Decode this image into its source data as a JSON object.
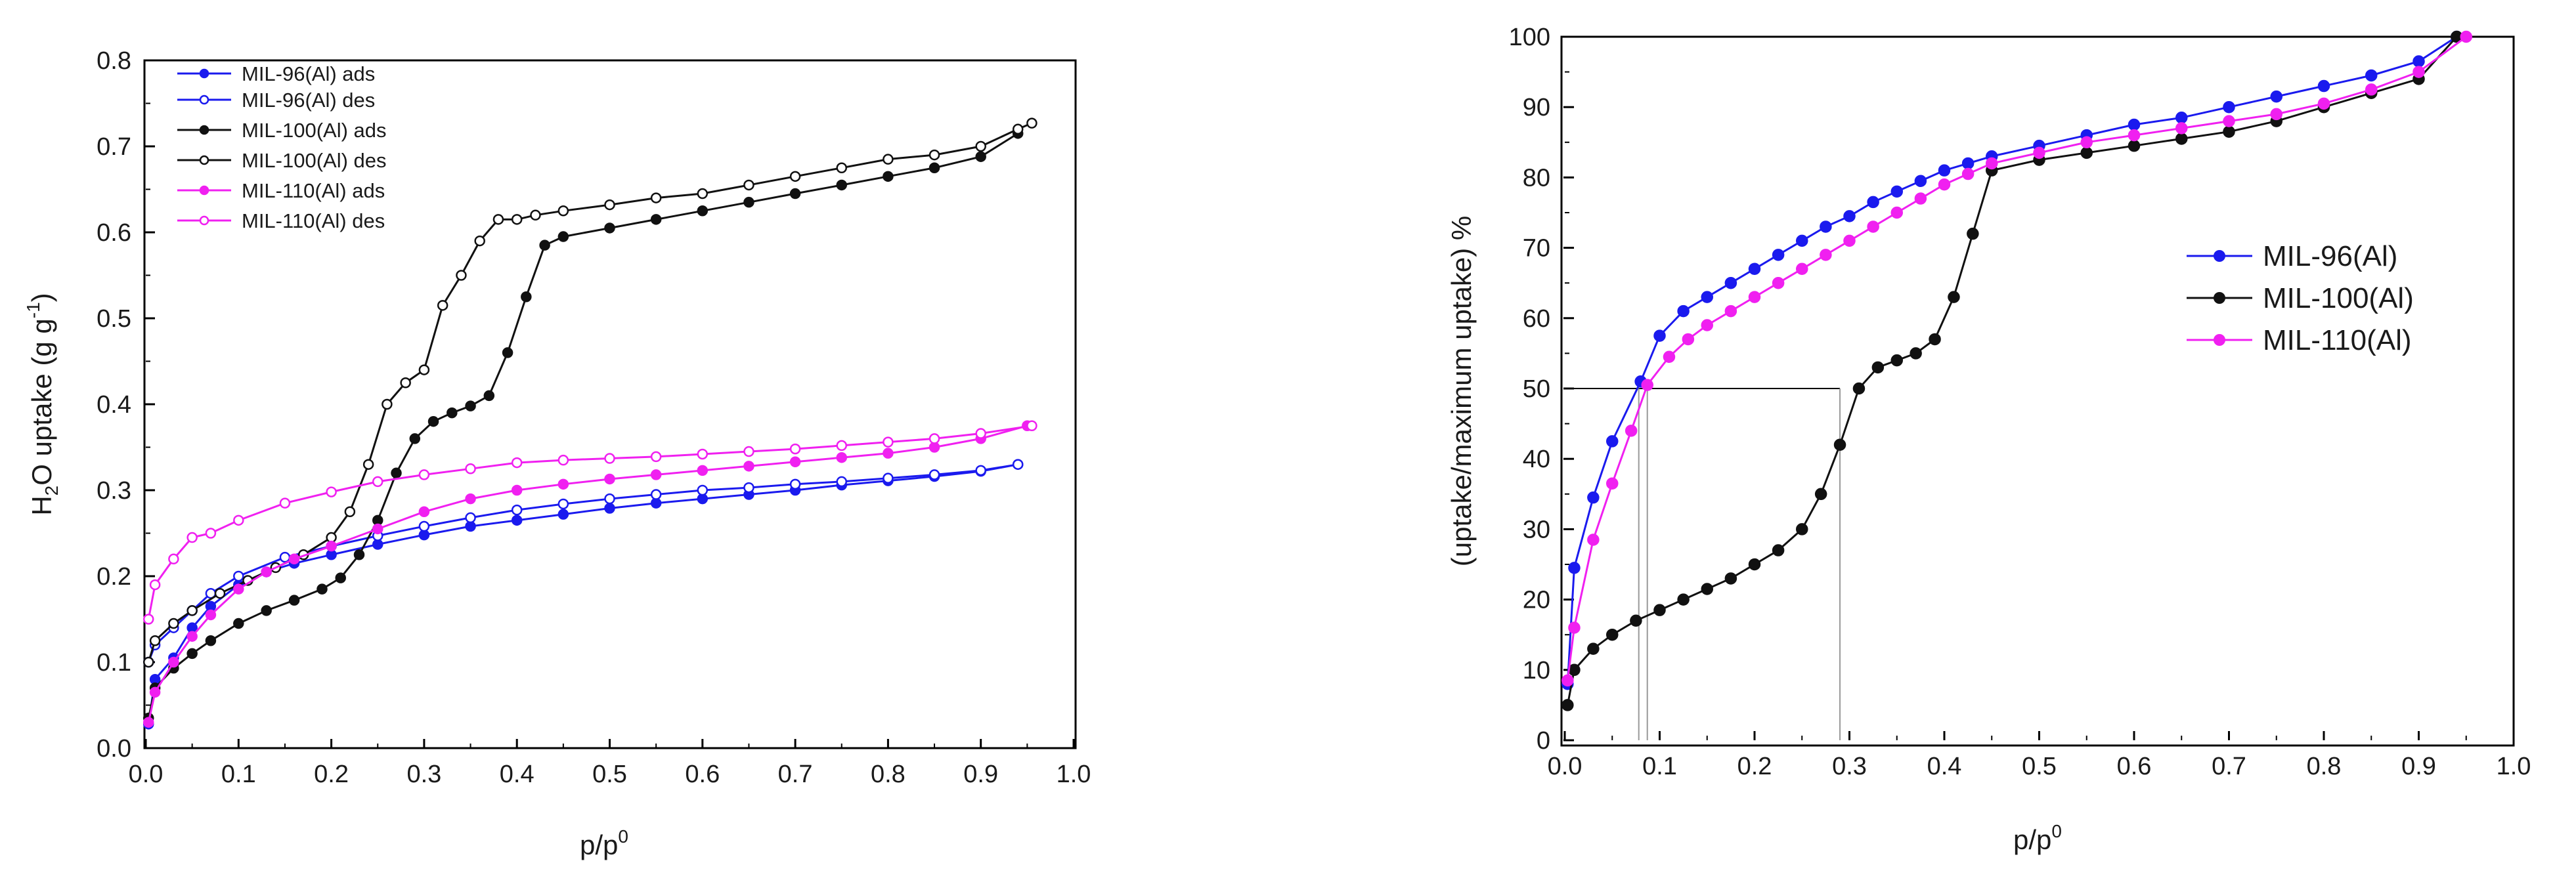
{
  "colors": {
    "blue": "#1a1aee",
    "black": "#111111",
    "magenta": "#f020f0",
    "guide": "#999999",
    "frame": "#000000"
  },
  "chart_data": [
    {
      "type": "line",
      "title": "",
      "xlabel": "p/p",
      "xlabel_sup": "0",
      "ylabel_pre": "H",
      "ylabel_sub": "2",
      "ylabel_mid": "O uptake (g g",
      "ylabel_sup": "-1",
      "ylabel_post": ")",
      "xlim": [
        0,
        1.0
      ],
      "ylim": [
        0,
        0.8
      ],
      "xticks": [
        "0.0",
        "0.1",
        "0.2",
        "0.3",
        "0.4",
        "0.5",
        "0.6",
        "0.7",
        "0.8",
        "0.9",
        "1.0"
      ],
      "yticks": [
        "0.0",
        "0.1",
        "0.2",
        "0.3",
        "0.4",
        "0.5",
        "0.6",
        "0.7",
        "0.8"
      ],
      "legend_position": "top-left",
      "series": [
        {
          "name": "MIL-96(Al) ads",
          "color": "blue",
          "filled": true,
          "x": [
            0.003,
            0.01,
            0.03,
            0.05,
            0.07,
            0.1,
            0.13,
            0.16,
            0.2,
            0.25,
            0.3,
            0.35,
            0.4,
            0.45,
            0.5,
            0.55,
            0.6,
            0.65,
            0.7,
            0.75,
            0.8,
            0.85,
            0.9,
            0.94
          ],
          "y": [
            0.028,
            0.08,
            0.105,
            0.14,
            0.165,
            0.19,
            0.205,
            0.215,
            0.225,
            0.237,
            0.248,
            0.258,
            0.265,
            0.272,
            0.279,
            0.285,
            0.29,
            0.295,
            0.3,
            0.306,
            0.311,
            0.316,
            0.322,
            0.33
          ]
        },
        {
          "name": "MIL-96(Al) des",
          "color": "blue",
          "filled": false,
          "x": [
            0.94,
            0.9,
            0.85,
            0.8,
            0.75,
            0.7,
            0.65,
            0.6,
            0.55,
            0.5,
            0.45,
            0.4,
            0.35,
            0.3,
            0.25,
            0.2,
            0.15,
            0.1,
            0.07,
            0.05,
            0.03,
            0.01,
            0.003
          ],
          "y": [
            0.33,
            0.323,
            0.318,
            0.314,
            0.31,
            0.307,
            0.303,
            0.3,
            0.295,
            0.29,
            0.284,
            0.277,
            0.268,
            0.258,
            0.247,
            0.235,
            0.222,
            0.2,
            0.18,
            0.16,
            0.14,
            0.12,
            0.1
          ]
        },
        {
          "name": "MIL-100(Al) ads",
          "color": "black",
          "filled": true,
          "x": [
            0.003,
            0.01,
            0.03,
            0.05,
            0.07,
            0.1,
            0.13,
            0.16,
            0.19,
            0.21,
            0.23,
            0.25,
            0.27,
            0.29,
            0.31,
            0.33,
            0.35,
            0.37,
            0.39,
            0.41,
            0.43,
            0.45,
            0.5,
            0.55,
            0.6,
            0.65,
            0.7,
            0.75,
            0.8,
            0.85,
            0.9,
            0.94
          ],
          "y": [
            0.035,
            0.07,
            0.093,
            0.11,
            0.125,
            0.145,
            0.16,
            0.172,
            0.185,
            0.198,
            0.225,
            0.265,
            0.32,
            0.36,
            0.38,
            0.39,
            0.398,
            0.41,
            0.46,
            0.525,
            0.585,
            0.595,
            0.605,
            0.615,
            0.625,
            0.635,
            0.645,
            0.655,
            0.665,
            0.675,
            0.688,
            0.715
          ]
        },
        {
          "name": "MIL-100(Al) des",
          "color": "black",
          "filled": false,
          "x": [
            0.955,
            0.94,
            0.9,
            0.85,
            0.8,
            0.75,
            0.7,
            0.65,
            0.6,
            0.55,
            0.5,
            0.45,
            0.42,
            0.4,
            0.38,
            0.36,
            0.34,
            0.32,
            0.3,
            0.28,
            0.26,
            0.24,
            0.22,
            0.2,
            0.17,
            0.14,
            0.11,
            0.08,
            0.05,
            0.03,
            0.01,
            0.003
          ],
          "y": [
            0.727,
            0.72,
            0.7,
            0.69,
            0.685,
            0.675,
            0.665,
            0.655,
            0.645,
            0.64,
            0.632,
            0.625,
            0.62,
            0.615,
            0.615,
            0.59,
            0.55,
            0.515,
            0.44,
            0.425,
            0.4,
            0.33,
            0.275,
            0.245,
            0.225,
            0.21,
            0.195,
            0.18,
            0.16,
            0.145,
            0.125,
            0.1
          ]
        },
        {
          "name": "MIL-110(Al) ads",
          "color": "magenta",
          "filled": true,
          "x": [
            0.003,
            0.01,
            0.03,
            0.05,
            0.07,
            0.1,
            0.13,
            0.16,
            0.2,
            0.25,
            0.3,
            0.35,
            0.4,
            0.45,
            0.5,
            0.55,
            0.6,
            0.65,
            0.7,
            0.75,
            0.8,
            0.85,
            0.9,
            0.95
          ],
          "y": [
            0.03,
            0.065,
            0.1,
            0.13,
            0.155,
            0.185,
            0.205,
            0.22,
            0.235,
            0.255,
            0.275,
            0.29,
            0.3,
            0.307,
            0.313,
            0.318,
            0.323,
            0.328,
            0.333,
            0.338,
            0.343,
            0.35,
            0.36,
            0.375
          ]
        },
        {
          "name": "MIL-110(Al) des",
          "color": "magenta",
          "filled": false,
          "x": [
            0.955,
            0.9,
            0.85,
            0.8,
            0.75,
            0.7,
            0.65,
            0.6,
            0.55,
            0.5,
            0.45,
            0.4,
            0.35,
            0.3,
            0.25,
            0.2,
            0.15,
            0.1,
            0.07,
            0.05,
            0.03,
            0.01,
            0.003
          ],
          "y": [
            0.375,
            0.366,
            0.36,
            0.356,
            0.352,
            0.348,
            0.345,
            0.342,
            0.339,
            0.337,
            0.335,
            0.332,
            0.325,
            0.318,
            0.31,
            0.298,
            0.285,
            0.265,
            0.25,
            0.245,
            0.22,
            0.19,
            0.15
          ]
        }
      ]
    },
    {
      "type": "line",
      "title": "",
      "xlabel": "p/p",
      "xlabel_sup": "0",
      "ylabel": "(uptake/maximum uptake) %",
      "xlim": [
        0,
        1.0
      ],
      "ylim": [
        0,
        100
      ],
      "xticks": [
        "0.0",
        "0.1",
        "0.2",
        "0.3",
        "0.4",
        "0.5",
        "0.6",
        "0.7",
        "0.8",
        "0.9",
        "1.0"
      ],
      "yticks": [
        "0",
        "10",
        "20",
        "30",
        "40",
        "50",
        "60",
        "70",
        "80",
        "90",
        "100"
      ],
      "legend_position": "right",
      "reference_lines": {
        "y": 50,
        "x": [
          0.078,
          0.087,
          0.29
        ]
      },
      "series": [
        {
          "name": "MIL-96(Al)",
          "color": "blue",
          "filled": true,
          "x": [
            0.003,
            0.01,
            0.03,
            0.05,
            0.08,
            0.1,
            0.125,
            0.15,
            0.175,
            0.2,
            0.225,
            0.25,
            0.275,
            0.3,
            0.325,
            0.35,
            0.375,
            0.4,
            0.425,
            0.45,
            0.5,
            0.55,
            0.6,
            0.65,
            0.7,
            0.75,
            0.8,
            0.85,
            0.9,
            0.94
          ],
          "y": [
            8,
            24.5,
            34.5,
            42.5,
            51,
            57.5,
            61,
            63,
            65,
            67,
            69,
            71,
            73,
            74.5,
            76.5,
            78,
            79.5,
            81,
            82,
            83,
            84.5,
            86,
            87.5,
            88.5,
            90,
            91.5,
            93,
            94.5,
            96.5,
            100
          ]
        },
        {
          "name": "MIL-100(Al)",
          "color": "black",
          "filled": true,
          "x": [
            0.003,
            0.01,
            0.03,
            0.05,
            0.075,
            0.1,
            0.125,
            0.15,
            0.175,
            0.2,
            0.225,
            0.25,
            0.27,
            0.29,
            0.31,
            0.33,
            0.35,
            0.37,
            0.39,
            0.41,
            0.43,
            0.45,
            0.5,
            0.55,
            0.6,
            0.65,
            0.7,
            0.75,
            0.8,
            0.85,
            0.9,
            0.94
          ],
          "y": [
            5,
            10,
            13,
            15,
            17,
            18.5,
            20,
            21.5,
            23,
            25,
            27,
            30,
            35,
            42,
            50,
            53,
            54,
            55,
            57,
            63,
            72,
            81,
            82.5,
            83.5,
            84.5,
            85.5,
            86.5,
            88,
            90,
            92,
            94,
            100
          ]
        },
        {
          "name": "MIL-110(Al)",
          "color": "magenta",
          "filled": true,
          "x": [
            0.003,
            0.01,
            0.03,
            0.05,
            0.07,
            0.087,
            0.11,
            0.13,
            0.15,
            0.175,
            0.2,
            0.225,
            0.25,
            0.275,
            0.3,
            0.325,
            0.35,
            0.375,
            0.4,
            0.425,
            0.45,
            0.5,
            0.55,
            0.6,
            0.65,
            0.7,
            0.75,
            0.8,
            0.85,
            0.9,
            0.95
          ],
          "y": [
            8.5,
            16,
            28.5,
            36.5,
            44,
            50.5,
            54.5,
            57,
            59,
            61,
            63,
            65,
            67,
            69,
            71,
            73,
            75,
            77,
            79,
            80.5,
            82,
            83.5,
            85,
            86,
            87,
            88,
            89,
            90.5,
            92.5,
            95,
            100
          ]
        }
      ]
    }
  ]
}
